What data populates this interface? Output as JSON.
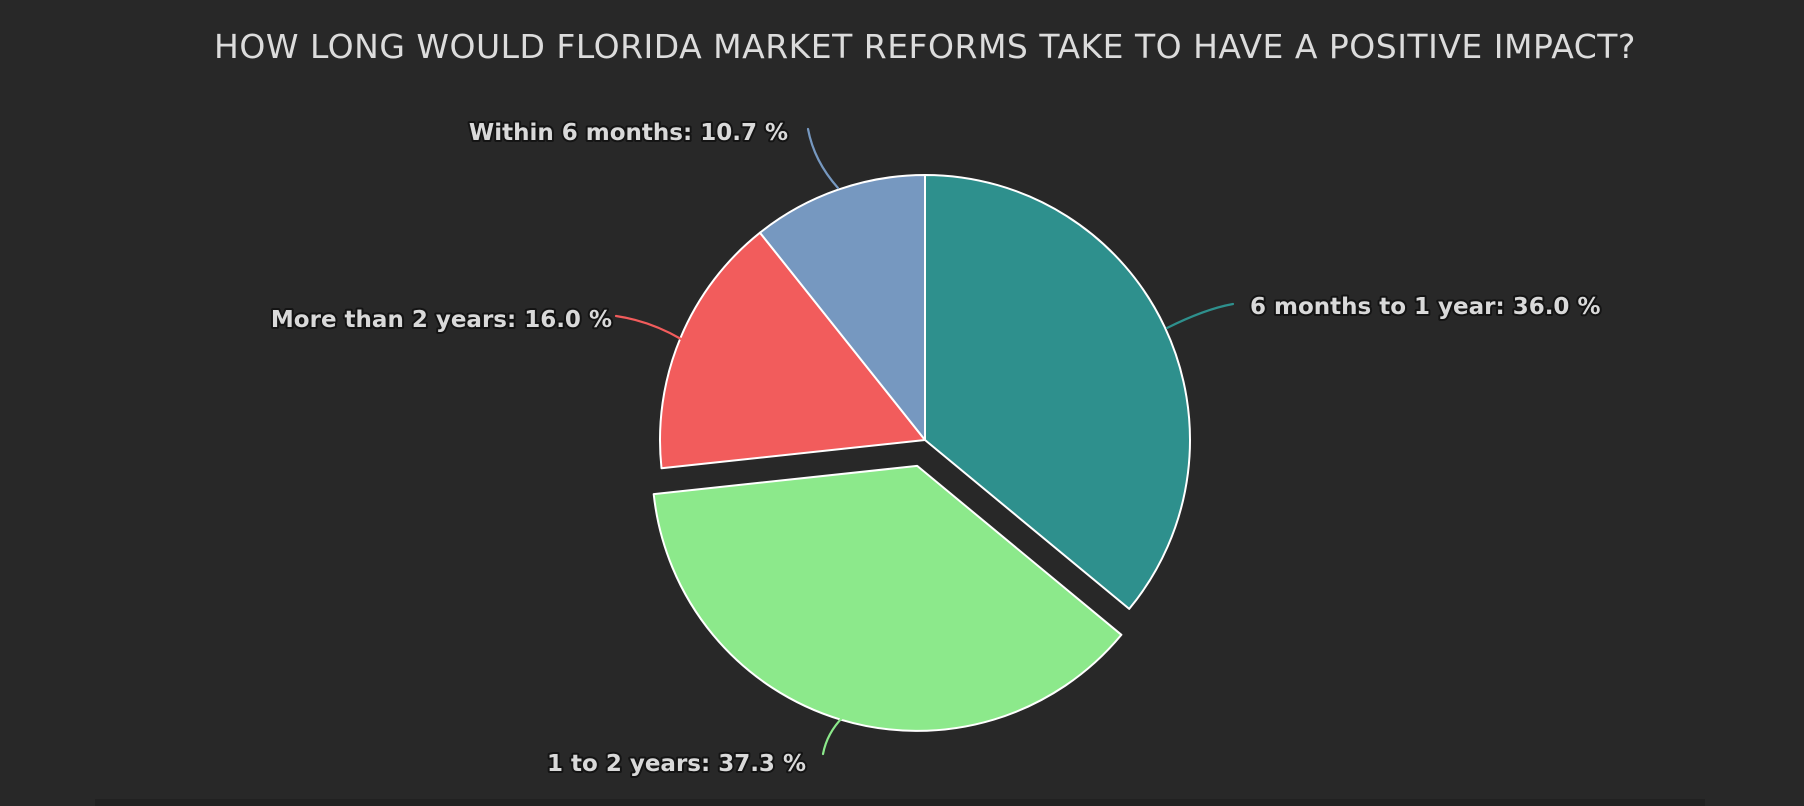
{
  "title": "HOW LONG WOULD FLORIDA MARKET REFORMS TAKE TO HAVE A POSITIVE IMPACT?",
  "colors": {
    "background": "#282828",
    "title_text": "#dcdcdc",
    "label_text": "#d9d9d9",
    "label_outline": "#141414",
    "slice_border": "#ffffff"
  },
  "chart_data": {
    "type": "pie",
    "title": "HOW LONG WOULD FLORIDA MARKET REFORMS TAKE TO HAVE A POSITIVE IMPACT?",
    "start_angle_deg": 0,
    "direction": "clockwise",
    "legend": "none",
    "slices": [
      {
        "label": "6 months to 1 year",
        "value": 36.0,
        "display": "6 months to 1 year: 36.0 %",
        "color": "#2e908d",
        "pulled": false
      },
      {
        "label": "1 to 2 years",
        "value": 37.3,
        "display": "1 to 2 years: 37.3 %",
        "color": "#8ce98b",
        "pulled": true
      },
      {
        "label": "More than 2 years",
        "value": 16.0,
        "display": "More than 2 years: 16.0 %",
        "color": "#f25c5c",
        "pulled": false
      },
      {
        "label": "Within 6 months",
        "value": 10.7,
        "display": "Within 6 months: 10.7 %",
        "color": "#7698c0",
        "pulled": false
      }
    ]
  }
}
